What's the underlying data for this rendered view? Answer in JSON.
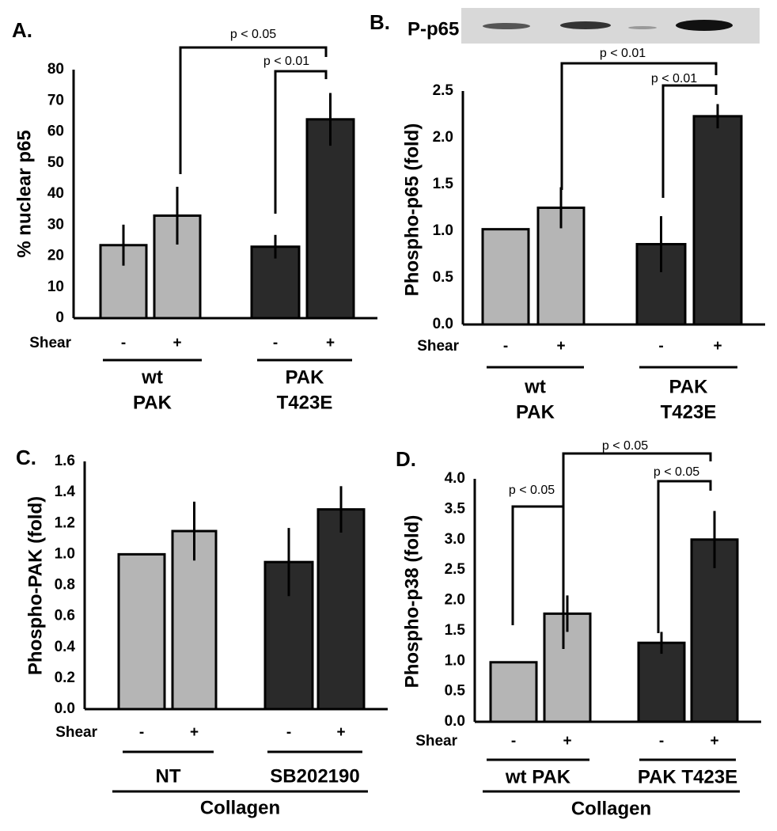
{
  "chart_data": [
    {
      "type": "bar",
      "panel_label": "A.",
      "y_label": "% nuclear p65",
      "ylim": [
        0,
        80
      ],
      "yticks": [
        0,
        10,
        20,
        30,
        40,
        50,
        60,
        70,
        80
      ],
      "shear_label": "Shear",
      "shear_ticks": [
        "-",
        "+",
        "-",
        "+"
      ],
      "values": [
        23.5,
        33,
        23,
        64
      ],
      "errors": [
        6.6,
        9.3,
        3.8,
        8.5
      ],
      "colors": [
        "#b5b5b5",
        "#b5b5b5",
        "#2a2a2a",
        "#2a2a2a"
      ],
      "groups": [
        [
          "wt",
          "PAK"
        ],
        [
          "PAK",
          "T423E"
        ]
      ],
      "annotations": [
        "p < 0.05",
        "p < 0.01"
      ]
    },
    {
      "type": "bar",
      "panel_label": "B.",
      "blot_label": "P-p65",
      "y_label": "Phospho-p65  (fold)",
      "ylim": [
        0,
        2.5
      ],
      "yticks": [
        {
          "value": 0,
          "label": "0.0"
        },
        0.5,
        {
          "value": 1,
          "label": "1.0"
        },
        1.5,
        {
          "value": 2,
          "label": "2.0"
        },
        2.5
      ],
      "shear_label": "Shear",
      "shear_ticks": [
        "-",
        "+",
        "-",
        "+"
      ],
      "values": [
        1.02,
        1.25,
        0.86,
        2.23
      ],
      "errors": [
        null,
        0.22,
        0.3,
        0.13
      ],
      "colors": [
        "#b5b5b5",
        "#b5b5b5",
        "#2a2a2a",
        "#2a2a2a"
      ],
      "groups": [
        [
          "wt",
          "PAK"
        ],
        [
          "PAK",
          "T423E"
        ]
      ],
      "annotations": [
        "p < 0.01",
        "p < 0.01"
      ]
    },
    {
      "type": "bar",
      "panel_label": "C.",
      "y_label": "Phospho-PAK (fold)",
      "ylim": [
        0,
        1.6
      ],
      "yticks": [
        {
          "value": 0,
          "label": "0.0"
        },
        0.2,
        0.4,
        0.6,
        0.8,
        {
          "value": 1,
          "label": "1.0"
        },
        1.2,
        1.4,
        1.6
      ],
      "shear_label": "Shear",
      "shear_ticks": [
        "-",
        "+",
        "-",
        "+"
      ],
      "values": [
        1.0,
        1.15,
        0.95,
        1.29
      ],
      "errors": [
        null,
        0.19,
        0.22,
        0.15
      ],
      "colors": [
        "#b5b5b5",
        "#b5b5b5",
        "#2a2a2a",
        "#2a2a2a"
      ],
      "groups": [
        [
          "NT"
        ],
        [
          "SB202190"
        ]
      ],
      "super_group": "Collagen",
      "annotations": []
    },
    {
      "type": "bar",
      "panel_label": "D.",
      "y_label": "Phospho-p38 (fold)",
      "ylim": [
        0,
        4
      ],
      "yticks": [
        {
          "value": 0,
          "label": "0.0"
        },
        0.5,
        {
          "value": 1,
          "label": "1.0"
        },
        1.5,
        {
          "value": 2,
          "label": "2.0"
        },
        2.5,
        {
          "value": 3,
          "label": "3.0"
        },
        3.5,
        {
          "value": 4,
          "label": "4.0"
        }
      ],
      "shear_label": "Shear",
      "shear_ticks": [
        "-",
        "+",
        "-",
        "+"
      ],
      "values": [
        0.98,
        1.78,
        1.3,
        3.0
      ],
      "errors": [
        null,
        0.3,
        0.18,
        0.47
      ],
      "colors": [
        "#b5b5b5",
        "#b5b5b5",
        "#2a2a2a",
        "#2a2a2a"
      ],
      "groups": [
        [
          "wt PAK"
        ],
        [
          "PAK T423E"
        ]
      ],
      "super_group": "Collagen",
      "annotations": [
        "p < 0.05",
        "p < 0.05",
        "p < 0.05"
      ]
    }
  ]
}
